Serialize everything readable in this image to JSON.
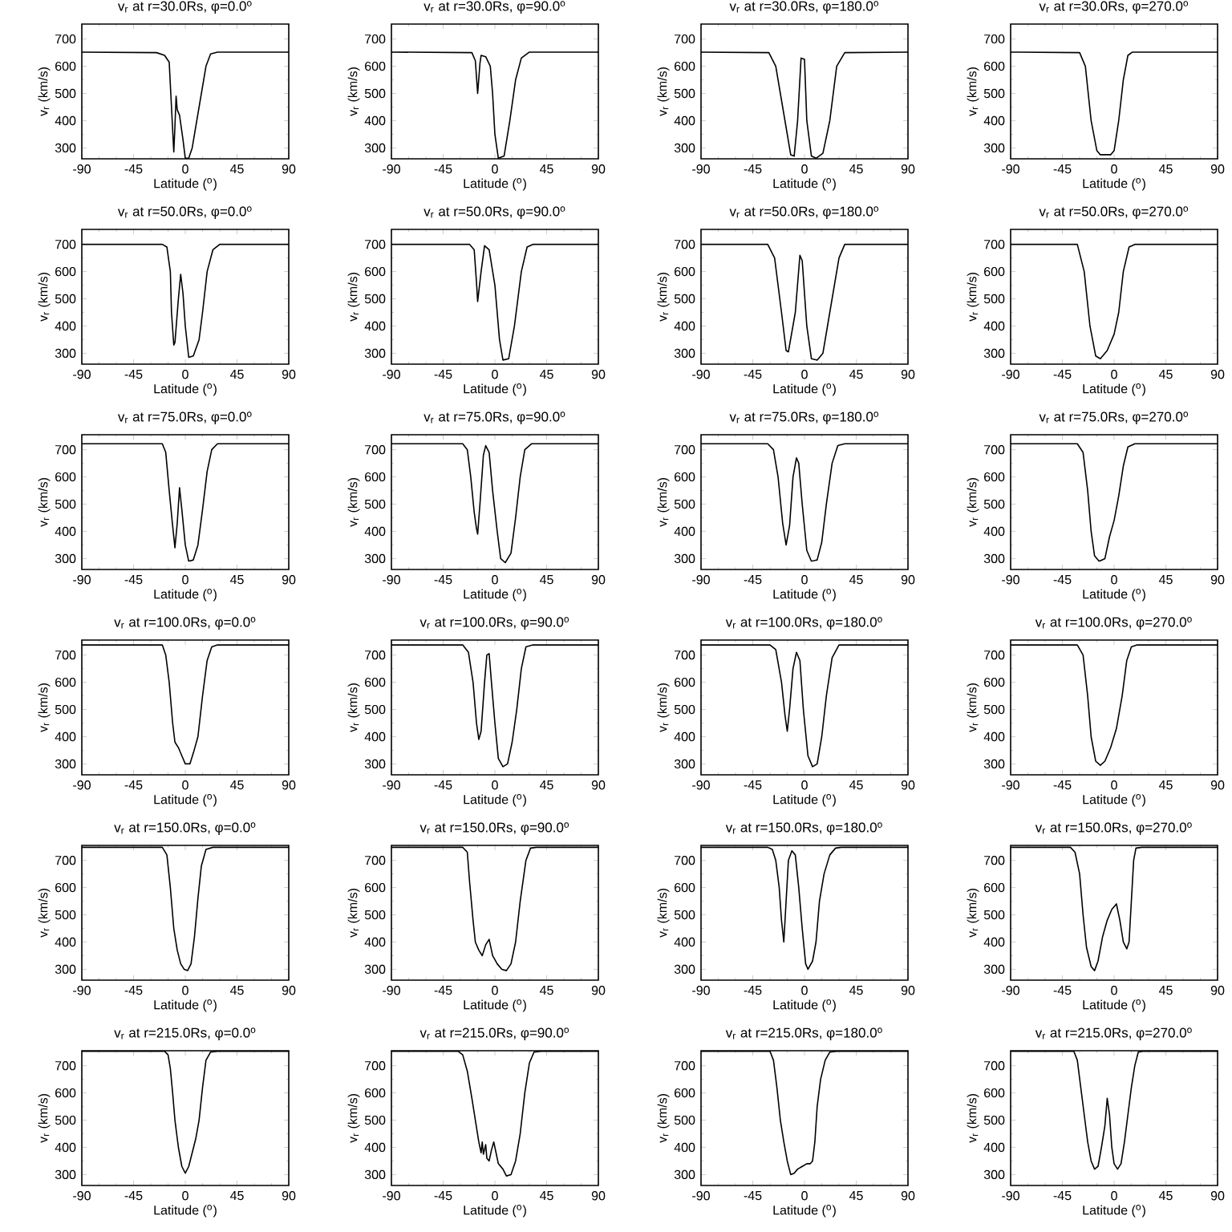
{
  "chart_data": [
    {
      "type": "line",
      "title": "v$_{r}$ at r=30.0Rs, φ=0.0$^{o}$",
      "xlabel": "Latitude ($^{o}$)",
      "ylabel": "v$_{r}$ (km/s)",
      "color": "#000000",
      "xlim": [
        -90,
        90
      ],
      "ylim": [
        260,
        755
      ],
      "xticks": [
        -90,
        -45,
        0,
        45,
        90
      ],
      "yticks": [
        300,
        400,
        500,
        600,
        700
      ],
      "x": [
        -90,
        -25,
        -18,
        -14,
        -12,
        -10,
        -9,
        -8,
        -7,
        -5,
        -2,
        0,
        3,
        6,
        10,
        14,
        18,
        22,
        28,
        90
      ],
      "values": [
        652,
        650,
        640,
        615,
        450,
        285,
        380,
        490,
        440,
        420,
        330,
        262,
        262,
        300,
        400,
        500,
        600,
        645,
        652,
        652
      ]
    },
    {
      "type": "line",
      "title": "v$_{r}$ at r=30.0Rs, φ=90.0$^{o}$",
      "xlabel": "Latitude ($^{o}$)",
      "ylabel": "v$_{r}$ (km/s)",
      "color": "#000000",
      "xlim": [
        -90,
        90
      ],
      "ylim": [
        260,
        755
      ],
      "xticks": [
        -90,
        -45,
        0,
        45,
        90
      ],
      "yticks": [
        300,
        400,
        500,
        600,
        700
      ],
      "x": [
        -90,
        -20,
        -17,
        -16,
        -15,
        -13,
        -12,
        -8,
        -4,
        -2,
        0,
        3,
        8,
        13,
        18,
        23,
        30,
        90
      ],
      "values": [
        652,
        650,
        620,
        560,
        500,
        610,
        640,
        635,
        600,
        500,
        350,
        262,
        270,
        400,
        550,
        630,
        652,
        652
      ]
    },
    {
      "type": "line",
      "title": "v$_{r}$ at r=30.0Rs, φ=180.0$^{o}$",
      "xlabel": "Latitude ($^{o}$)",
      "ylabel": "v$_{r}$ (km/s)",
      "color": "#000000",
      "xlim": [
        -90,
        90
      ],
      "ylim": [
        260,
        755
      ],
      "xticks": [
        -90,
        -45,
        0,
        45,
        90
      ],
      "yticks": [
        300,
        400,
        500,
        600,
        700
      ],
      "x": [
        -90,
        -31,
        -25,
        -19,
        -12,
        -9,
        -6,
        -3,
        0,
        2,
        6,
        10,
        16,
        22,
        28,
        35,
        90
      ],
      "values": [
        652,
        650,
        600,
        450,
        275,
        270,
        400,
        630,
        625,
        400,
        270,
        262,
        280,
        400,
        600,
        650,
        652
      ]
    },
    {
      "type": "line",
      "title": "v$_{r}$ at r=30.0Rs, φ=270.0$^{o}$",
      "xlabel": "Latitude ($^{o}$)",
      "ylabel": "v$_{r}$ (km/s)",
      "color": "#000000",
      "xlim": [
        -90,
        90
      ],
      "ylim": [
        260,
        755
      ],
      "xticks": [
        -90,
        -45,
        0,
        45,
        90
      ],
      "yticks": [
        300,
        400,
        500,
        600,
        700
      ],
      "x": [
        -90,
        -30,
        -25,
        -20,
        -15,
        -12,
        -3,
        0,
        4,
        8,
        12,
        16,
        90
      ],
      "values": [
        652,
        650,
        600,
        400,
        290,
        275,
        275,
        290,
        400,
        550,
        640,
        652,
        652
      ]
    },
    {
      "type": "line",
      "title": "v$_{r}$ at r=50.0Rs, φ=0.0$^{o}$",
      "xlabel": "Latitude ($^{o}$)",
      "ylabel": "v$_{r}$ (km/s)",
      "color": "#000000",
      "xlim": [
        -90,
        90
      ],
      "ylim": [
        260,
        755
      ],
      "xticks": [
        -90,
        -45,
        0,
        45,
        90
      ],
      "yticks": [
        300,
        400,
        500,
        600,
        700
      ],
      "x": [
        -90,
        -20,
        -16,
        -13,
        -12,
        -10,
        -9,
        -6,
        -4,
        -2,
        0,
        3,
        7,
        12,
        15,
        19,
        24,
        30,
        90
      ],
      "values": [
        700,
        700,
        690,
        600,
        450,
        330,
        340,
        500,
        590,
        520,
        400,
        285,
        290,
        350,
        450,
        600,
        680,
        700,
        700
      ]
    },
    {
      "type": "line",
      "title": "v$_{r}$ at r=50.0Rs, φ=90.0$^{o}$",
      "xlabel": "Latitude ($^{o}$)",
      "ylabel": "v$_{r}$ (km/s)",
      "color": "#000000",
      "xlim": [
        -90,
        90
      ],
      "ylim": [
        260,
        755
      ],
      "xticks": [
        -90,
        -45,
        0,
        45,
        90
      ],
      "yticks": [
        300,
        400,
        500,
        600,
        700
      ],
      "x": [
        -90,
        -22,
        -18,
        -16,
        -15,
        -12,
        -9,
        -5,
        0,
        4,
        7,
        12,
        17,
        23,
        28,
        33,
        90
      ],
      "values": [
        700,
        700,
        680,
        560,
        490,
        600,
        695,
        680,
        550,
        350,
        275,
        280,
        400,
        600,
        690,
        700,
        700
      ]
    },
    {
      "type": "line",
      "title": "v$_{r}$ at r=50.0Rs, φ=180.0$^{o}$",
      "xlabel": "Latitude ($^{o}$)",
      "ylabel": "v$_{r}$ (km/s)",
      "color": "#000000",
      "xlim": [
        -90,
        90
      ],
      "ylim": [
        260,
        755
      ],
      "xticks": [
        -90,
        -45,
        0,
        45,
        90
      ],
      "yticks": [
        300,
        400,
        500,
        600,
        700
      ],
      "x": [
        -90,
        -32,
        -26,
        -20,
        -16,
        -14,
        -8,
        -4,
        -2,
        2,
        6,
        11,
        16,
        22,
        30,
        35,
        90
      ],
      "values": [
        700,
        700,
        650,
        450,
        310,
        305,
        450,
        660,
        640,
        400,
        280,
        275,
        300,
        450,
        650,
        700,
        700
      ]
    },
    {
      "type": "line",
      "title": "v$_{r}$ at r=50.0Rs, φ=270.0$^{o}$",
      "xlabel": "Latitude ($^{o}$)",
      "ylabel": "v$_{r}$ (km/s)",
      "color": "#000000",
      "xlim": [
        -90,
        90
      ],
      "ylim": [
        260,
        755
      ],
      "xticks": [
        -90,
        -45,
        0,
        45,
        90
      ],
      "yticks": [
        300,
        400,
        500,
        600,
        700
      ],
      "x": [
        -90,
        -32,
        -26,
        -21,
        -16,
        -12,
        -6,
        0,
        4,
        8,
        13,
        18,
        90
      ],
      "values": [
        700,
        700,
        600,
        400,
        290,
        280,
        310,
        370,
        450,
        600,
        690,
        700,
        700
      ]
    },
    {
      "type": "line",
      "title": "v$_{r}$ at r=75.0Rs, φ=0.0$^{o}$",
      "xlabel": "Latitude ($^{o}$)",
      "ylabel": "v$_{r}$ (km/s)",
      "color": "#000000",
      "xlim": [
        -90,
        90
      ],
      "ylim": [
        260,
        755
      ],
      "xticks": [
        -90,
        -45,
        0,
        45,
        90
      ],
      "yticks": [
        300,
        400,
        500,
        600,
        700
      ],
      "x": [
        -90,
        -20,
        -17,
        -14,
        -11,
        -9,
        -7,
        -5,
        -3,
        0,
        3,
        7,
        11,
        15,
        19,
        23,
        28,
        90
      ],
      "values": [
        722,
        722,
        690,
        550,
        420,
        340,
        430,
        560,
        480,
        350,
        290,
        295,
        350,
        480,
        620,
        700,
        722,
        722
      ]
    },
    {
      "type": "line",
      "title": "v$_{r}$ at r=75.0Rs, φ=90.0$^{o}$",
      "xlabel": "Latitude ($^{o}$)",
      "ylabel": "v$_{r}$ (km/s)",
      "color": "#000000",
      "xlim": [
        -90,
        90
      ],
      "ylim": [
        260,
        755
      ],
      "xticks": [
        -90,
        -45,
        0,
        45,
        90
      ],
      "yticks": [
        300,
        400,
        500,
        600,
        700
      ],
      "x": [
        -90,
        -28,
        -24,
        -21,
        -18,
        -16,
        -15,
        -13,
        -10,
        -8,
        -5,
        -2,
        2,
        5,
        9,
        14,
        18,
        22,
        26,
        32,
        90
      ],
      "values": [
        722,
        722,
        700,
        600,
        470,
        410,
        390,
        500,
        680,
        715,
        690,
        550,
        400,
        300,
        285,
        320,
        450,
        600,
        700,
        722,
        722
      ]
    },
    {
      "type": "line",
      "title": "v$_{r}$ at r=75.0Rs, φ=180.0$^{o}$",
      "xlabel": "Latitude ($^{o}$)",
      "ylabel": "v$_{r}$ (km/s)",
      "color": "#000000",
      "xlim": [
        -90,
        90
      ],
      "ylim": [
        260,
        755
      ],
      "xticks": [
        -90,
        -45,
        0,
        45,
        90
      ],
      "yticks": [
        300,
        400,
        500,
        600,
        700
      ],
      "x": [
        -90,
        -32,
        -27,
        -23,
        -19,
        -16,
        -13,
        -10,
        -7,
        -5,
        -2,
        2,
        6,
        11,
        15,
        19,
        24,
        29,
        35,
        90
      ],
      "values": [
        722,
        722,
        700,
        600,
        430,
        350,
        420,
        600,
        670,
        650,
        500,
        330,
        290,
        295,
        360,
        500,
        650,
        715,
        722,
        722
      ]
    },
    {
      "type": "line",
      "title": "v$_{r}$ at r=75.0Rs, φ=270.0$^{o}$",
      "xlabel": "Latitude ($^{o}$)",
      "ylabel": "v$_{r}$ (km/s)",
      "color": "#000000",
      "xlim": [
        -90,
        90
      ],
      "ylim": [
        260,
        755
      ],
      "xticks": [
        -90,
        -45,
        0,
        45,
        90
      ],
      "yticks": [
        300,
        400,
        500,
        600,
        700
      ],
      "x": [
        -90,
        -32,
        -27,
        -23,
        -20,
        -17,
        -13,
        -8,
        -4,
        0,
        4,
        8,
        12,
        18,
        90
      ],
      "values": [
        722,
        722,
        690,
        550,
        400,
        310,
        290,
        300,
        380,
        440,
        530,
        640,
        710,
        722,
        722
      ]
    },
    {
      "type": "line",
      "title": "v$_{r}$ at r=100.0Rs, φ=0.0$^{o}$",
      "xlabel": "Latitude ($^{o}$)",
      "ylabel": "v$_{r}$ (km/s)",
      "color": "#000000",
      "xlim": [
        -90,
        90
      ],
      "ylim": [
        260,
        755
      ],
      "xticks": [
        -90,
        -45,
        0,
        45,
        90
      ],
      "yticks": [
        300,
        400,
        500,
        600,
        700
      ],
      "x": [
        -90,
        -20,
        -17,
        -14,
        -11,
        -9,
        -6,
        -3,
        0,
        4,
        7,
        11,
        15,
        19,
        23,
        28,
        90
      ],
      "values": [
        737,
        737,
        700,
        600,
        450,
        380,
        360,
        330,
        300,
        300,
        340,
        400,
        550,
        680,
        730,
        737,
        737
      ]
    },
    {
      "type": "line",
      "title": "v$_{r}$ at r=100.0Rs, φ=90.0$^{o}$",
      "xlabel": "Latitude ($^{o}$)",
      "ylabel": "v$_{r}$ (km/s)",
      "color": "#000000",
      "xlim": [
        -90,
        90
      ],
      "ylim": [
        260,
        755
      ],
      "xticks": [
        -90,
        -45,
        0,
        45,
        90
      ],
      "yticks": [
        300,
        400,
        500,
        600,
        700
      ],
      "x": [
        -90,
        -28,
        -23,
        -19,
        -16,
        -14,
        -12,
        -9,
        -7,
        -5,
        -3,
        0,
        3,
        7,
        11,
        15,
        19,
        23,
        27,
        33,
        90
      ],
      "values": [
        737,
        737,
        710,
        600,
        450,
        390,
        420,
        600,
        700,
        705,
        600,
        450,
        320,
        290,
        300,
        380,
        500,
        650,
        730,
        737,
        737
      ]
    },
    {
      "type": "line",
      "title": "v$_{r}$ at r=100.0Rs, φ=180.0$^{o}$",
      "xlabel": "Latitude ($^{o}$)",
      "ylabel": "v$_{r}$ (km/s)",
      "color": "#000000",
      "xlim": [
        -90,
        90
      ],
      "ylim": [
        260,
        755
      ],
      "xticks": [
        -90,
        -45,
        0,
        45,
        90
      ],
      "yticks": [
        300,
        400,
        500,
        600,
        700
      ],
      "x": [
        -90,
        -30,
        -25,
        -20,
        -17,
        -15,
        -13,
        -10,
        -7,
        -4,
        -1,
        3,
        7,
        11,
        15,
        19,
        24,
        30,
        90
      ],
      "values": [
        737,
        737,
        720,
        600,
        480,
        420,
        500,
        650,
        710,
        680,
        500,
        330,
        290,
        300,
        400,
        550,
        690,
        737,
        737
      ]
    },
    {
      "type": "line",
      "title": "v$_{r}$ at r=100.0Rs, φ=270.0$^{o}$",
      "xlabel": "Latitude ($^{o}$)",
      "ylabel": "v$_{r}$ (km/s)",
      "color": "#000000",
      "xlim": [
        -90,
        90
      ],
      "ylim": [
        260,
        755
      ],
      "xticks": [
        -90,
        -45,
        0,
        45,
        90
      ],
      "yticks": [
        300,
        400,
        500,
        600,
        700
      ],
      "x": [
        -90,
        -32,
        -27,
        -23,
        -20,
        -16,
        -12,
        -8,
        -3,
        2,
        7,
        11,
        15,
        20,
        90
      ],
      "values": [
        737,
        737,
        700,
        550,
        400,
        310,
        295,
        310,
        360,
        430,
        550,
        680,
        730,
        737,
        737
      ]
    },
    {
      "type": "line",
      "title": "v$_{r}$ at r=150.0Rs, φ=0.0$^{o}$",
      "xlabel": "Latitude ($^{o}$)",
      "ylabel": "v$_{r}$ (km/s)",
      "color": "#000000",
      "xlim": [
        -90,
        90
      ],
      "ylim": [
        260,
        755
      ],
      "xticks": [
        -90,
        -45,
        0,
        45,
        90
      ],
      "yticks": [
        300,
        400,
        500,
        600,
        700
      ],
      "x": [
        -90,
        -20,
        -16,
        -13,
        -10,
        -7,
        -4,
        -1,
        2,
        5,
        8,
        11,
        14,
        18,
        24,
        90
      ],
      "values": [
        748,
        748,
        720,
        600,
        450,
        370,
        320,
        300,
        295,
        320,
        420,
        560,
        680,
        740,
        748,
        748
      ]
    },
    {
      "type": "line",
      "title": "v$_{r}$ at r=150.0Rs, φ=90.0$^{o}$",
      "xlabel": "Latitude ($^{o}$)",
      "ylabel": "v$_{r}$ (km/s)",
      "color": "#000000",
      "xlim": [
        -90,
        90
      ],
      "ylim": [
        260,
        755
      ],
      "xticks": [
        -90,
        -45,
        0,
        45,
        90
      ],
      "yticks": [
        300,
        400,
        500,
        600,
        700
      ],
      "x": [
        -90,
        -28,
        -24,
        -22,
        -19,
        -17,
        -14,
        -11,
        -8,
        -5,
        -2,
        2,
        6,
        10,
        14,
        18,
        22,
        27,
        31,
        36,
        90
      ],
      "values": [
        748,
        748,
        730,
        620,
        480,
        400,
        370,
        350,
        390,
        410,
        350,
        320,
        300,
        295,
        320,
        400,
        550,
        700,
        745,
        748,
        748
      ]
    },
    {
      "type": "line",
      "title": "v$_{r}$ at r=150.0Rs, φ=180.0$^{o}$",
      "xlabel": "Latitude ($^{o}$)",
      "ylabel": "v$_{r}$ (km/s)",
      "color": "#000000",
      "xlim": [
        -90,
        90
      ],
      "ylim": [
        260,
        755
      ],
      "xticks": [
        -90,
        -45,
        0,
        45,
        90
      ],
      "yticks": [
        300,
        400,
        500,
        600,
        700
      ],
      "x": [
        -90,
        -32,
        -28,
        -25,
        -22,
        -20,
        -18,
        -16,
        -14,
        -11,
        -8,
        -5,
        -2,
        1,
        3,
        7,
        10,
        13,
        17,
        22,
        27,
        32,
        90
      ],
      "values": [
        748,
        748,
        740,
        700,
        600,
        480,
        400,
        550,
        700,
        735,
        720,
        600,
        450,
        320,
        300,
        330,
        400,
        550,
        650,
        720,
        745,
        748,
        748
      ]
    },
    {
      "type": "line",
      "title": "v$_{r}$ at r=150.0Rs, φ=270.0$^{o}$",
      "xlabel": "Latitude ($^{o}$)",
      "ylabel": "v$_{r}$ (km/s)",
      "color": "#000000",
      "xlim": [
        -90,
        90
      ],
      "ylim": [
        260,
        755
      ],
      "xticks": [
        -90,
        -45,
        0,
        45,
        90
      ],
      "yticks": [
        300,
        400,
        500,
        600,
        700
      ],
      "x": [
        -90,
        -38,
        -34,
        -30,
        -27,
        -24,
        -20,
        -17,
        -14,
        -10,
        -6,
        -2,
        2,
        5,
        8,
        11,
        13,
        15,
        17,
        19,
        24,
        90
      ],
      "values": [
        748,
        748,
        730,
        650,
        500,
        380,
        310,
        295,
        330,
        420,
        480,
        520,
        540,
        480,
        400,
        375,
        400,
        550,
        700,
        745,
        748,
        748
      ]
    },
    {
      "type": "line",
      "title": "v$_{r}$ at r=215.0Rs, φ=0.0$^{o}$",
      "xlabel": "Latitude ($^{o}$)",
      "ylabel": "v$_{r}$ (km/s)",
      "color": "#000000",
      "xlim": [
        -90,
        90
      ],
      "ylim": [
        260,
        755
      ],
      "xticks": [
        -90,
        -45,
        0,
        45,
        90
      ],
      "yticks": [
        300,
        400,
        500,
        600,
        700
      ],
      "x": [
        -90,
        -18,
        -15,
        -13,
        -11,
        -9,
        -6,
        -3,
        0,
        3,
        6,
        9,
        12,
        15,
        18,
        22,
        28,
        90
      ],
      "values": [
        753,
        753,
        740,
        690,
        600,
        500,
        400,
        330,
        305,
        330,
        380,
        430,
        500,
        620,
        720,
        750,
        753,
        753
      ]
    },
    {
      "type": "line",
      "title": "v$_{r}$ at r=215.0Rs, φ=90.0$^{o}$",
      "xlabel": "Latitude ($^{o}$)",
      "ylabel": "v$_{r}$ (km/s)",
      "color": "#000000",
      "xlim": [
        -90,
        90
      ],
      "ylim": [
        260,
        755
      ],
      "xticks": [
        -90,
        -45,
        0,
        45,
        90
      ],
      "yticks": [
        300,
        400,
        500,
        600,
        700
      ],
      "x": [
        -90,
        -32,
        -28,
        -24,
        -20,
        -17,
        -14,
        -12,
        -11,
        -10,
        -8,
        -7,
        -5,
        -3,
        -1,
        1,
        3,
        7,
        10,
        14,
        18,
        22,
        26,
        30,
        34,
        40,
        90
      ],
      "values": [
        753,
        753,
        740,
        680,
        580,
        500,
        420,
        380,
        420,
        375,
        410,
        360,
        350,
        390,
        420,
        380,
        340,
        320,
        295,
        300,
        350,
        450,
        600,
        710,
        750,
        753,
        753
      ]
    },
    {
      "type": "line",
      "title": "v$_{r}$ at r=215.0Rs, φ=180.0$^{o}$",
      "xlabel": "Latitude ($^{o}$)",
      "ylabel": "v$_{r}$ (km/s)",
      "color": "#000000",
      "xlim": [
        -90,
        90
      ],
      "ylim": [
        260,
        755
      ],
      "xticks": [
        -90,
        -45,
        0,
        45,
        90
      ],
      "yticks": [
        300,
        400,
        500,
        600,
        700
      ],
      "x": [
        -90,
        -30,
        -27,
        -24,
        -21,
        -18,
        -15,
        -12,
        -9,
        -6,
        -2,
        2,
        5,
        7,
        9,
        11,
        14,
        18,
        22,
        28,
        90
      ],
      "values": [
        753,
        753,
        720,
        620,
        500,
        420,
        350,
        300,
        305,
        320,
        330,
        340,
        340,
        350,
        420,
        550,
        650,
        720,
        750,
        753,
        753
      ]
    },
    {
      "type": "line",
      "title": "v$_{r}$ at r=215.0Rs, φ=270.0$^{o}$",
      "xlabel": "Latitude ($^{o}$)",
      "ylabel": "v$_{r}$ (km/s)",
      "color": "#000000",
      "xlim": [
        -90,
        90
      ],
      "ylim": [
        260,
        755
      ],
      "xticks": [
        -90,
        -45,
        0,
        45,
        90
      ],
      "yticks": [
        300,
        400,
        500,
        600,
        700
      ],
      "x": [
        -90,
        -35,
        -32,
        -29,
        -26,
        -23,
        -20,
        -17,
        -14,
        -11,
        -8,
        -6,
        -4,
        -2,
        0,
        3,
        6,
        9,
        12,
        15,
        18,
        21,
        25,
        90
      ],
      "values": [
        753,
        753,
        720,
        620,
        520,
        420,
        350,
        320,
        330,
        400,
        480,
        580,
        520,
        400,
        340,
        320,
        340,
        420,
        520,
        620,
        700,
        750,
        753,
        753
      ]
    }
  ]
}
